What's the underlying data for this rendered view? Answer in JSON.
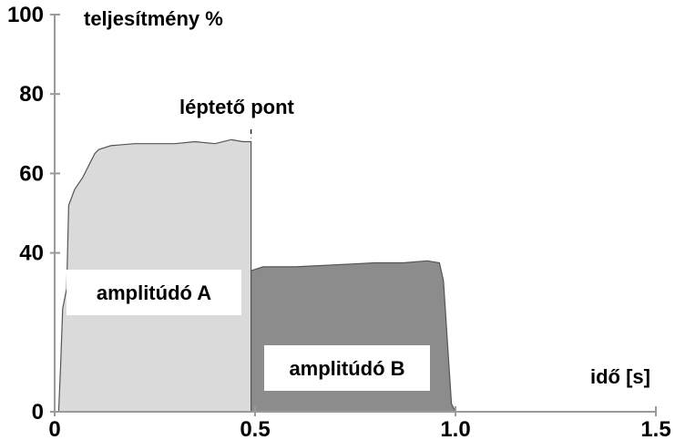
{
  "chart_data": {
    "type": "area",
    "ylabel": "teljesítmény %",
    "xlabel": "idő [s]",
    "xlim": [
      0,
      1.5
    ],
    "ylim": [
      0,
      100
    ],
    "x_ticks": [
      0,
      0.5,
      1.0,
      1.5
    ],
    "x_tick_labels": [
      "0",
      "0.5",
      "1.0",
      "1.5"
    ],
    "y_ticks": [
      0,
      40,
      60,
      80,
      100
    ],
    "y_tick_labels": [
      "0",
      "40",
      "60",
      "80",
      "100"
    ],
    "grid": false,
    "step_annotation": {
      "label": "léptető pont",
      "x": 0.49
    },
    "regions": [
      {
        "label": "amplitúdó A",
        "color": "#dadada",
        "points": [
          [
            0.0,
            0
          ],
          [
            0.01,
            0
          ],
          [
            0.015,
            12
          ],
          [
            0.02,
            26
          ],
          [
            0.03,
            31
          ],
          [
            0.035,
            52
          ],
          [
            0.05,
            56
          ],
          [
            0.07,
            59
          ],
          [
            0.09,
            63
          ],
          [
            0.1,
            65
          ],
          [
            0.11,
            66
          ],
          [
            0.14,
            67
          ],
          [
            0.2,
            67.5
          ],
          [
            0.3,
            67.5
          ],
          [
            0.35,
            68
          ],
          [
            0.4,
            67.5
          ],
          [
            0.44,
            68.5
          ],
          [
            0.47,
            68
          ],
          [
            0.49,
            68
          ],
          [
            0.49,
            0
          ]
        ]
      },
      {
        "label": "amplitúdó B",
        "color": "#8c8c8c",
        "points": [
          [
            0.49,
            0
          ],
          [
            0.49,
            35.5
          ],
          [
            0.52,
            36.5
          ],
          [
            0.6,
            36.5
          ],
          [
            0.7,
            37
          ],
          [
            0.8,
            37.5
          ],
          [
            0.87,
            37.5
          ],
          [
            0.93,
            38
          ],
          [
            0.96,
            37.5
          ],
          [
            0.97,
            33
          ],
          [
            0.99,
            2
          ],
          [
            1.0,
            0
          ]
        ]
      }
    ]
  }
}
